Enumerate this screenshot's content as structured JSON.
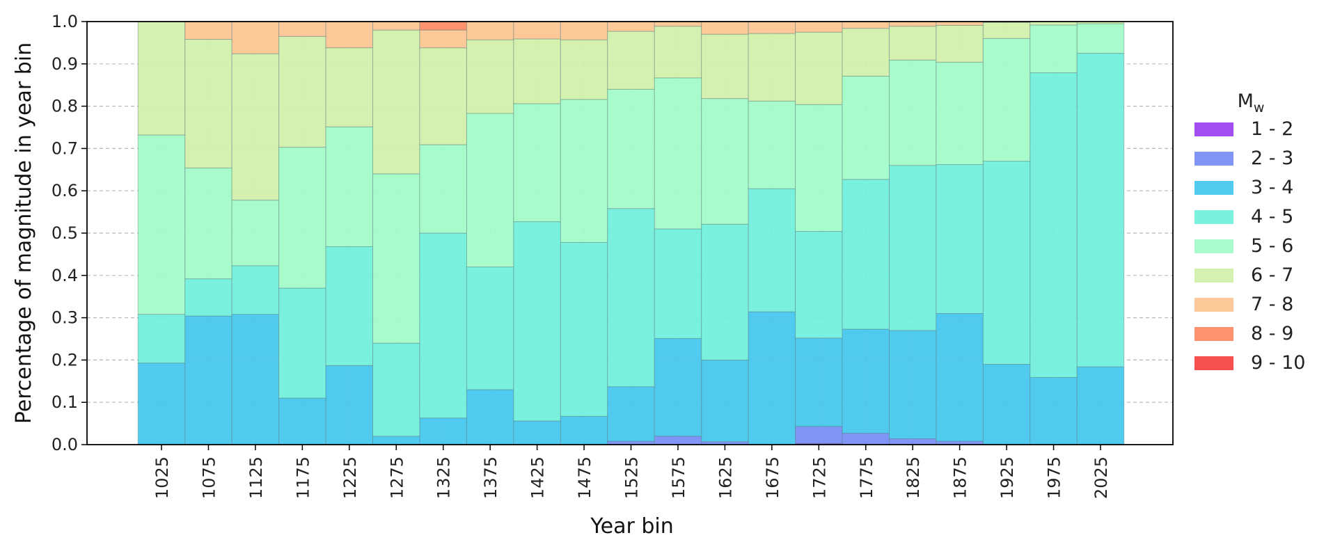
{
  "chart_data": {
    "type": "bar",
    "stacked": true,
    "xlabel": "Year bin",
    "ylabel": "Percentage of magnitude in year bin",
    "ylim": [
      0,
      1.0
    ],
    "yticks": [
      "0.0",
      "0.1",
      "0.2",
      "0.3",
      "0.4",
      "0.5",
      "0.6",
      "0.7",
      "0.8",
      "0.9",
      "1.0"
    ],
    "grid": true,
    "legend_position": "right",
    "legend_title": "M",
    "legend_title_subscript": "w",
    "categories": [
      "1025",
      "1075",
      "1125",
      "1175",
      "1225",
      "1275",
      "1325",
      "1375",
      "1425",
      "1475",
      "1525",
      "1575",
      "1625",
      "1675",
      "1725",
      "1775",
      "1825",
      "1875",
      "1925",
      "1975",
      "2025"
    ],
    "series": [
      {
        "name": "1 - 2",
        "color": "#9b3ff0",
        "values": [
          0,
          0,
          0,
          0,
          0,
          0,
          0,
          0,
          0,
          0,
          0,
          0,
          0,
          0,
          0.003,
          0,
          0,
          0,
          0,
          0,
          0
        ]
      },
      {
        "name": "2 - 3",
        "color": "#758cf5",
        "values": [
          0,
          0,
          0,
          0,
          0,
          0,
          0,
          0,
          0,
          0,
          0.008,
          0.02,
          0.007,
          0,
          0.04,
          0.027,
          0.014,
          0.008,
          0,
          0,
          0
        ]
      },
      {
        "name": "3 - 4",
        "color": "#42c6ef",
        "values": [
          0.193,
          0.304,
          0.308,
          0.11,
          0.187,
          0.02,
          0.063,
          0.13,
          0.056,
          0.067,
          0.129,
          0.231,
          0.193,
          0.314,
          0.209,
          0.246,
          0.256,
          0.302,
          0.19,
          0.159,
          0.184
        ]
      },
      {
        "name": "4 - 5",
        "color": "#6fefdc",
        "values": [
          0.115,
          0.088,
          0.115,
          0.26,
          0.281,
          0.22,
          0.437,
          0.29,
          0.471,
          0.411,
          0.421,
          0.259,
          0.321,
          0.291,
          0.252,
          0.354,
          0.39,
          0.352,
          0.48,
          0.72,
          0.741
        ]
      },
      {
        "name": "5 - 6",
        "color": "#a1fcc7",
        "values": [
          0.424,
          0.262,
          0.155,
          0.333,
          0.283,
          0.4,
          0.209,
          0.363,
          0.279,
          0.338,
          0.282,
          0.357,
          0.297,
          0.207,
          0.3,
          0.244,
          0.249,
          0.242,
          0.29,
          0.113,
          0.07
        ]
      },
      {
        "name": "6 - 7",
        "color": "#d0f0a8",
        "values": [
          0.268,
          0.304,
          0.346,
          0.262,
          0.187,
          0.34,
          0.229,
          0.174,
          0.153,
          0.141,
          0.137,
          0.122,
          0.152,
          0.16,
          0.171,
          0.113,
          0.08,
          0.087,
          0.038,
          0.008,
          0.005
        ]
      },
      {
        "name": "7 - 8",
        "color": "#fdc48f",
        "values": [
          0,
          0.042,
          0.076,
          0.035,
          0.062,
          0.02,
          0.042,
          0.043,
          0.041,
          0.043,
          0.023,
          0.011,
          0.03,
          0.028,
          0.025,
          0.016,
          0.011,
          0.009,
          0.002,
          0,
          0
        ]
      },
      {
        "name": "8 - 9",
        "color": "#ff8a61",
        "values": [
          0,
          0,
          0,
          0,
          0,
          0,
          0.02,
          0,
          0,
          0,
          0,
          0,
          0,
          0,
          0,
          0,
          0,
          0,
          0,
          0,
          0
        ]
      },
      {
        "name": "9 - 10",
        "color": "#f74040",
        "values": [
          0,
          0,
          0,
          0,
          0,
          0,
          0,
          0,
          0,
          0,
          0,
          0,
          0,
          0,
          0,
          0,
          0,
          0,
          0,
          0,
          0
        ]
      }
    ]
  }
}
